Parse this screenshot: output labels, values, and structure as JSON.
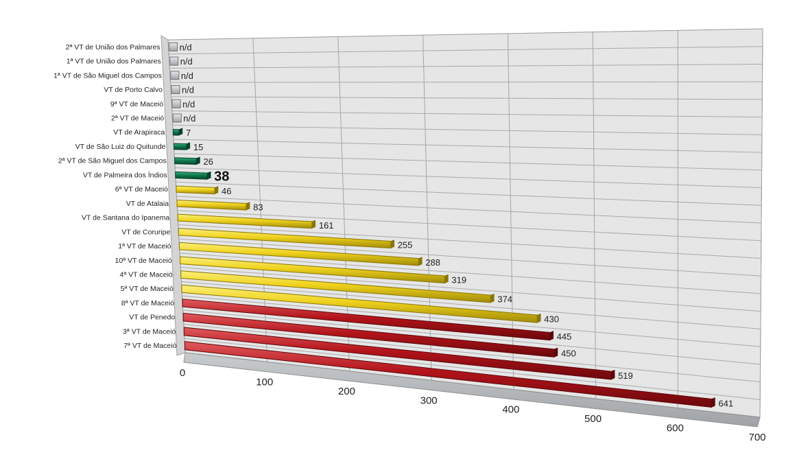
{
  "chart_data": {
    "type": "bar",
    "orientation": "horizontal",
    "style": "3d-perspective",
    "title": "",
    "xlabel": "",
    "ylabel": "",
    "xlim": [
      0,
      700
    ],
    "x_ticks": [
      "0",
      "100",
      "200",
      "300",
      "400",
      "500",
      "600",
      "700"
    ],
    "grid": true,
    "legend": "none",
    "colors": {
      "green": "#0f7a4f",
      "yellow": "#efd21d",
      "red": "#b3141b",
      "na": "#c4c8cc"
    },
    "bars": [
      {
        "category": "2ª VT de União dos Palmares",
        "value": null,
        "label": "n/d",
        "color": "na"
      },
      {
        "category": "1ª VT de União dos Palmares",
        "value": null,
        "label": "n/d",
        "color": "na"
      },
      {
        "category": "1ª VT de São Miguel dos Campos",
        "value": null,
        "label": "n/d",
        "color": "na"
      },
      {
        "category": "VT de Porto Calvo",
        "value": null,
        "label": "n/d",
        "color": "na"
      },
      {
        "category": "9ª VT de Maceió",
        "value": null,
        "label": "n/d",
        "color": "na"
      },
      {
        "category": "2ª VT de Maceió",
        "value": null,
        "label": "n/d",
        "color": "na"
      },
      {
        "category": "VT de Arapiraca",
        "value": 7,
        "label": "7",
        "color": "green"
      },
      {
        "category": "VT de São Luiz do Quitunde",
        "value": 15,
        "label": "15",
        "color": "green"
      },
      {
        "category": "2ª VT de São Miguel dos Campos",
        "value": 26,
        "label": "26",
        "color": "green"
      },
      {
        "category": "VT de Palmeira dos Índios",
        "value": 38,
        "label": "38",
        "color": "green",
        "emphasis": true
      },
      {
        "category": "6ª VT de Maceió",
        "value": 46,
        "label": "46",
        "color": "yellow"
      },
      {
        "category": "VT de Atalaia",
        "value": 83,
        "label": "83",
        "color": "yellow"
      },
      {
        "category": "VT de Santana do Ipanema",
        "value": 161,
        "label": "161",
        "color": "yellow"
      },
      {
        "category": "VT de Coruripe",
        "value": 255,
        "label": "255",
        "color": "yellow"
      },
      {
        "category": "1ª VT de Maceió",
        "value": 288,
        "label": "288",
        "color": "yellow"
      },
      {
        "category": "10ª VT de Maceió",
        "value": 319,
        "label": "319",
        "color": "yellow"
      },
      {
        "category": "4ª VT de Maceió",
        "value": 374,
        "label": "374",
        "color": "yellow"
      },
      {
        "category": "5ª VT de Maceió",
        "value": 430,
        "label": "430",
        "color": "yellow"
      },
      {
        "category": "8ª VT de Maceió",
        "value": 445,
        "label": "445",
        "color": "red"
      },
      {
        "category": "VT de Penedo",
        "value": 450,
        "label": "450",
        "color": "red"
      },
      {
        "category": "3ª VT de Maceió",
        "value": 519,
        "label": "519",
        "color": "red"
      },
      {
        "category": "7ª VT de Maceió",
        "value": 641,
        "label": "641",
        "color": "red"
      }
    ]
  }
}
